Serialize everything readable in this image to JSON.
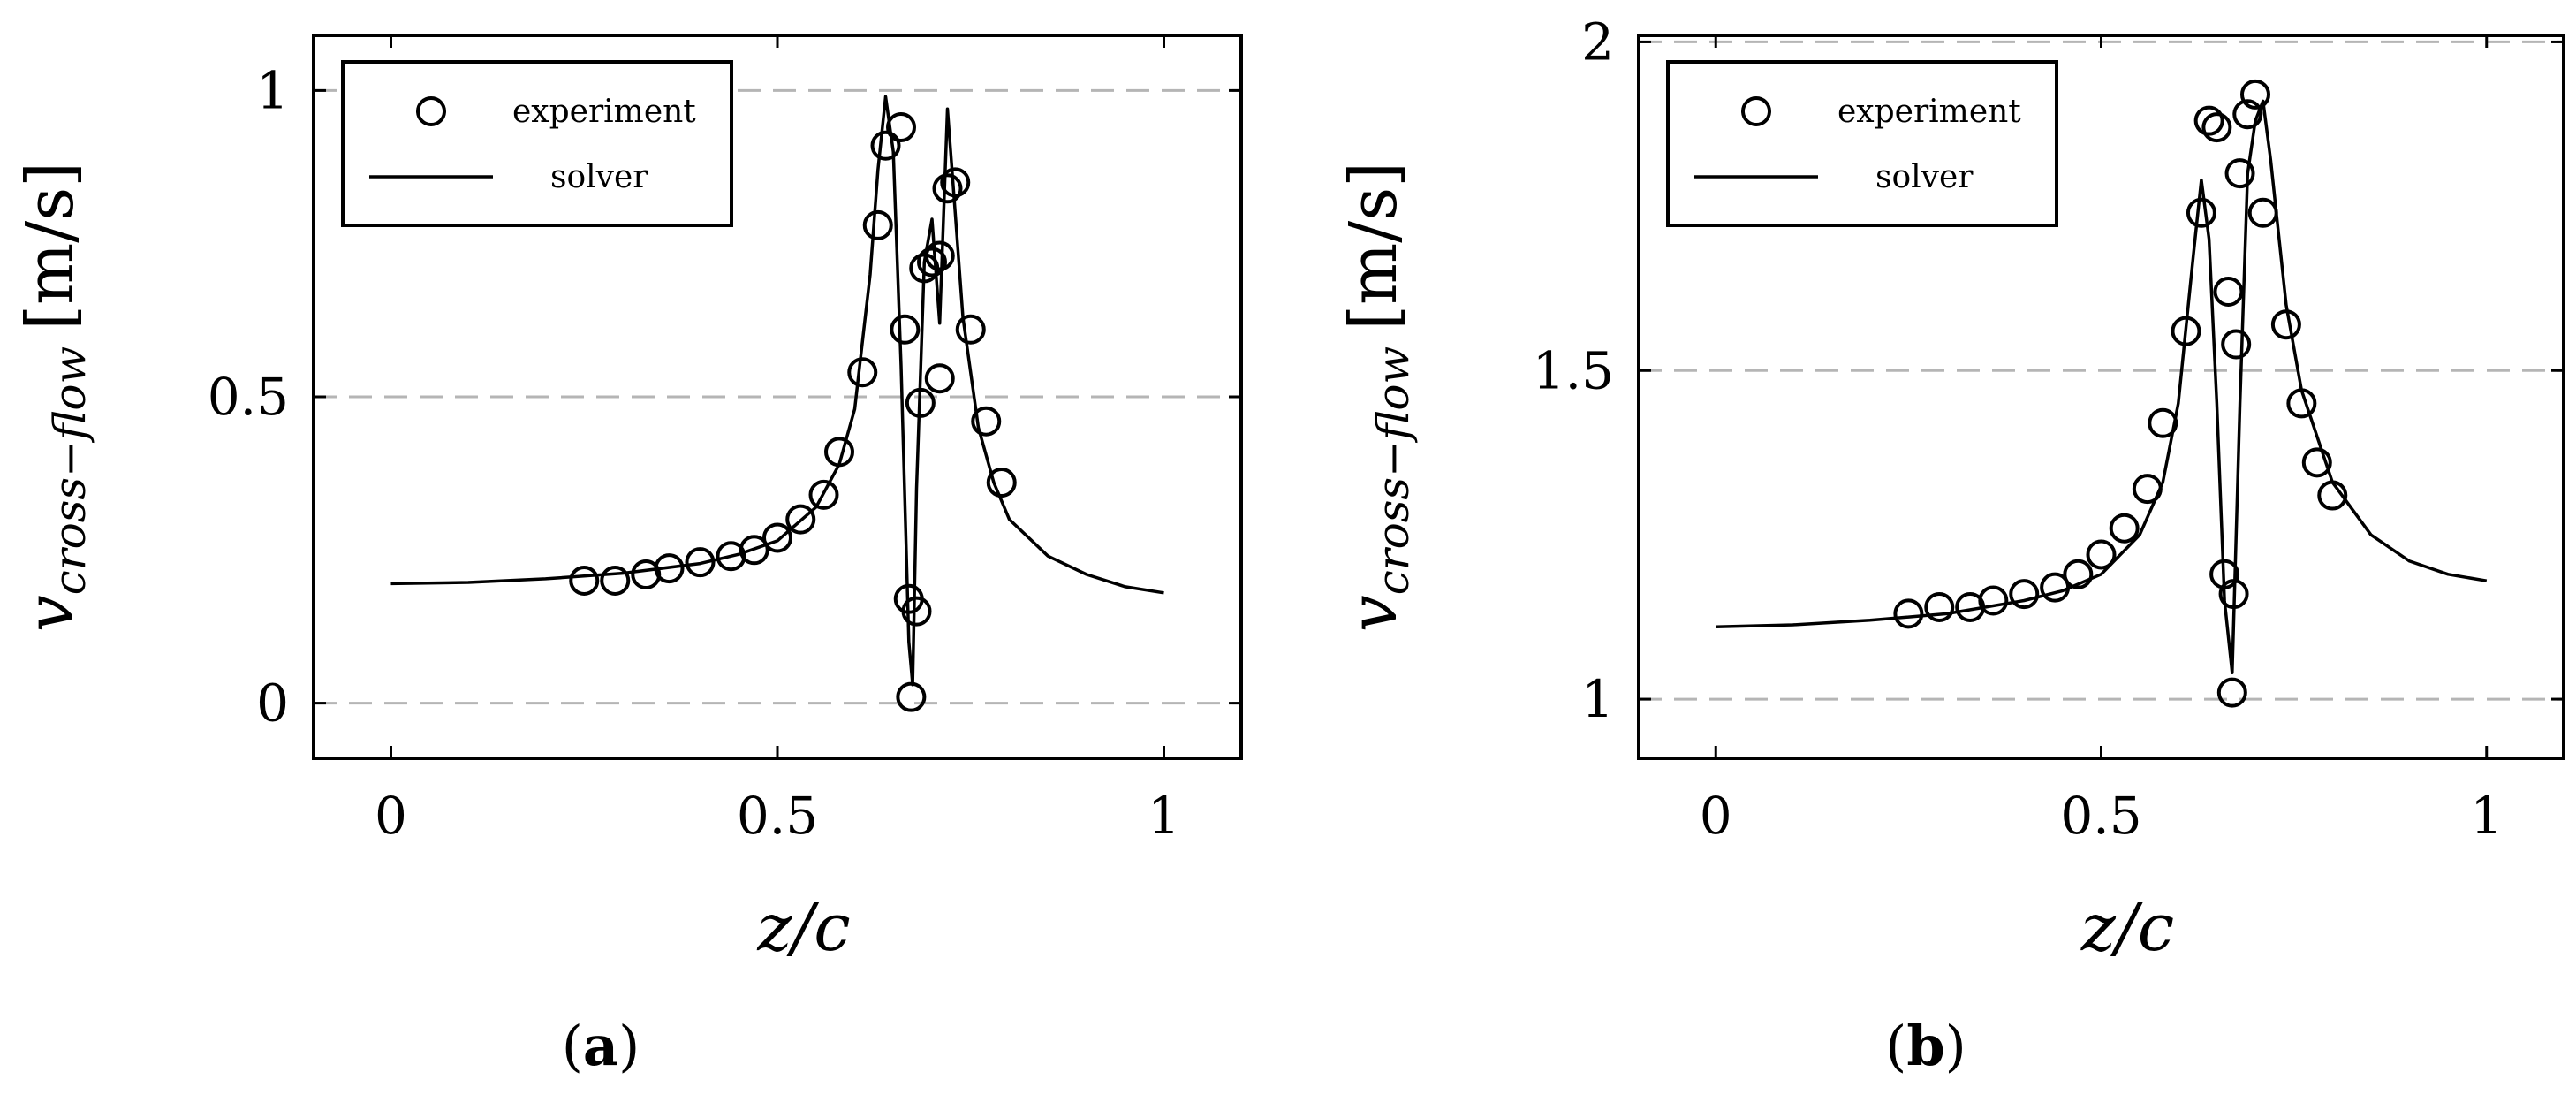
{
  "chart_data": [
    {
      "type": "scatter",
      "panel_label": "a",
      "xlabel": "z/c",
      "ylabel_symbol": "v",
      "ylabel_subscript": "cross−flow",
      "ylabel_unit": "[m/s]",
      "xlim": [
        -0.1,
        1.1
      ],
      "ylim": [
        -0.09,
        1.09
      ],
      "xticks": [
        0,
        0.5,
        1
      ],
      "xtick_labels": [
        "0",
        "0.5",
        "1"
      ],
      "yticks": [
        0,
        0.5,
        1
      ],
      "ytick_labels": [
        "0",
        "0.5",
        "1"
      ],
      "grid": "y-dashed",
      "legend_position": "top-left",
      "series": [
        {
          "name": "experiment",
          "kind": "markers",
          "marker": "open-circle",
          "x": [
            0.25,
            0.29,
            0.33,
            0.36,
            0.4,
            0.44,
            0.47,
            0.5,
            0.53,
            0.56,
            0.58,
            0.61,
            0.63,
            0.64,
            0.66,
            0.665,
            0.67,
            0.673,
            0.68,
            0.685,
            0.69,
            0.7,
            0.71,
            0.71,
            0.72,
            0.73,
            0.75,
            0.77,
            0.79
          ],
          "y": [
            0.2,
            0.2,
            0.21,
            0.22,
            0.23,
            0.24,
            0.25,
            0.27,
            0.3,
            0.34,
            0.41,
            0.54,
            0.78,
            0.91,
            0.94,
            0.61,
            0.17,
            0.01,
            0.15,
            0.49,
            0.71,
            0.72,
            0.73,
            0.53,
            0.84,
            0.85,
            0.61,
            0.46,
            0.36
          ]
        },
        {
          "name": "solver",
          "kind": "line",
          "x": [
            0.0,
            0.1,
            0.2,
            0.3,
            0.4,
            0.45,
            0.5,
            0.55,
            0.58,
            0.6,
            0.62,
            0.63,
            0.64,
            0.65,
            0.66,
            0.67,
            0.675,
            0.68,
            0.69,
            0.7,
            0.71,
            0.72,
            0.73,
            0.74,
            0.76,
            0.78,
            0.8,
            0.85,
            0.9,
            0.95,
            1.0
          ],
          "y": [
            0.195,
            0.197,
            0.203,
            0.212,
            0.228,
            0.243,
            0.265,
            0.32,
            0.39,
            0.48,
            0.7,
            0.87,
            0.99,
            0.9,
            0.55,
            0.1,
            0.03,
            0.35,
            0.72,
            0.79,
            0.62,
            0.97,
            0.8,
            0.63,
            0.45,
            0.36,
            0.3,
            0.24,
            0.21,
            0.19,
            0.18
          ]
        }
      ]
    },
    {
      "type": "scatter",
      "panel_label": "b",
      "xlabel": "z/c",
      "ylabel_symbol": "v",
      "ylabel_subscript": "cross−flow",
      "ylabel_unit": "[m/s]",
      "xlim": [
        -0.1,
        1.1
      ],
      "ylim": [
        0.91,
        2.01
      ],
      "xticks": [
        0,
        0.5,
        1
      ],
      "xtick_labels": [
        "0",
        "0.5",
        "1"
      ],
      "yticks": [
        1,
        1.5,
        2
      ],
      "ytick_labels": [
        "1",
        "1.5",
        "2"
      ],
      "grid": "y-dashed",
      "legend_position": "top-left",
      "series": [
        {
          "name": "experiment",
          "kind": "markers",
          "marker": "open-circle",
          "x": [
            0.25,
            0.29,
            0.33,
            0.36,
            0.4,
            0.44,
            0.47,
            0.5,
            0.53,
            0.56,
            0.58,
            0.61,
            0.63,
            0.64,
            0.65,
            0.66,
            0.665,
            0.67,
            0.672,
            0.675,
            0.68,
            0.69,
            0.7,
            0.71,
            0.74,
            0.76,
            0.78,
            0.8
          ],
          "y": [
            1.13,
            1.14,
            1.14,
            1.15,
            1.16,
            1.17,
            1.19,
            1.22,
            1.26,
            1.32,
            1.42,
            1.56,
            1.74,
            1.88,
            1.87,
            1.19,
            1.62,
            1.01,
            1.16,
            1.54,
            1.8,
            1.89,
            1.92,
            1.74,
            1.57,
            1.45,
            1.36,
            1.31
          ]
        },
        {
          "name": "solver",
          "kind": "line",
          "x": [
            0.0,
            0.1,
            0.2,
            0.3,
            0.4,
            0.45,
            0.5,
            0.55,
            0.58,
            0.6,
            0.62,
            0.63,
            0.64,
            0.65,
            0.66,
            0.67,
            0.68,
            0.69,
            0.7,
            0.71,
            0.72,
            0.74,
            0.76,
            0.8,
            0.85,
            0.9,
            0.95,
            1.0
          ],
          "y": [
            1.11,
            1.113,
            1.12,
            1.13,
            1.15,
            1.165,
            1.19,
            1.25,
            1.33,
            1.45,
            1.68,
            1.79,
            1.7,
            1.45,
            1.15,
            1.04,
            1.45,
            1.8,
            1.88,
            1.91,
            1.82,
            1.6,
            1.47,
            1.33,
            1.25,
            1.21,
            1.19,
            1.18
          ]
        }
      ]
    }
  ]
}
